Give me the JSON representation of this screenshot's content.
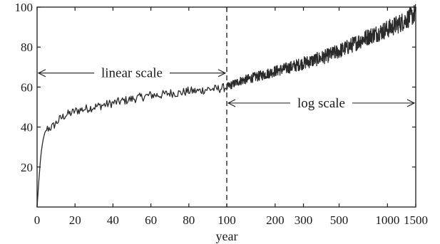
{
  "chart_data": {
    "type": "line",
    "xlabel": "year",
    "ylabel": "",
    "ylim": [
      0,
      100
    ],
    "x_scale": "linear from 0 to 100, logarithmic from 100 to 1500",
    "grid": false,
    "legend": "none",
    "x_ticks": [
      0,
      20,
      40,
      60,
      80,
      100,
      200,
      300,
      500,
      1000,
      1500
    ],
    "y_ticks": [
      20,
      40,
      60,
      80,
      100
    ],
    "divider_x": 100,
    "annotations": [
      {
        "text": "linear scale",
        "x_from": 0,
        "x_to": 100,
        "y": 67
      },
      {
        "text": "log scale",
        "x_from": 100,
        "x_to": 1500,
        "y": 52
      }
    ],
    "series": [
      {
        "color": "#2a2a2a",
        "points": [
          [
            0,
            0
          ],
          [
            1,
            14
          ],
          [
            2,
            26
          ],
          [
            3,
            33
          ],
          [
            4,
            37
          ],
          [
            5,
            39
          ],
          [
            8,
            40
          ],
          [
            10,
            42
          ],
          [
            12,
            44
          ],
          [
            15,
            46
          ],
          [
            18,
            47
          ],
          [
            20,
            48
          ],
          [
            25,
            49
          ],
          [
            30,
            50
          ],
          [
            35,
            51
          ],
          [
            40,
            52
          ],
          [
            45,
            53
          ],
          [
            50,
            54
          ],
          [
            55,
            55
          ],
          [
            60,
            56
          ],
          [
            65,
            56
          ],
          [
            70,
            57
          ],
          [
            75,
            57
          ],
          [
            80,
            58
          ],
          [
            85,
            58
          ],
          [
            90,
            59
          ],
          [
            95,
            59
          ],
          [
            100,
            60
          ],
          [
            120,
            63
          ],
          [
            150,
            65
          ],
          [
            200,
            68
          ],
          [
            250,
            70
          ],
          [
            300,
            72
          ],
          [
            400,
            75
          ],
          [
            500,
            78
          ],
          [
            600,
            81
          ],
          [
            700,
            84
          ],
          [
            800,
            86
          ],
          [
            1000,
            89
          ],
          [
            1200,
            92
          ],
          [
            1500,
            97
          ]
        ]
      }
    ]
  }
}
